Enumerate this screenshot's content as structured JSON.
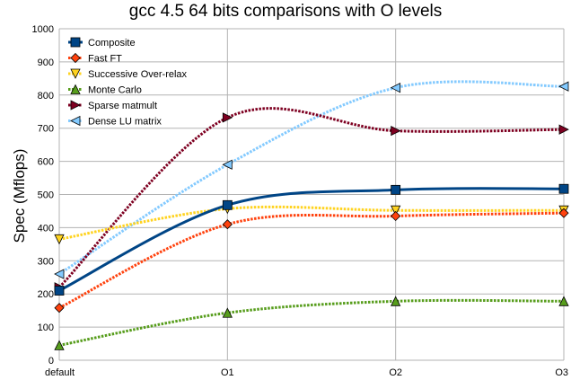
{
  "chart_data": {
    "type": "line",
    "title": "gcc 4.5 64 bits comparisons with O levels",
    "xlabel": "",
    "ylabel": "Spec (Mflops)",
    "categories": [
      "default",
      "O1",
      "O2",
      "O3"
    ],
    "ylim": [
      0,
      1000
    ],
    "yticks": [
      0,
      100,
      200,
      300,
      400,
      500,
      600,
      700,
      800,
      900,
      1000
    ],
    "grid": true,
    "legend_position": "top-left",
    "series": [
      {
        "name": "Composite",
        "values": [
          210,
          468,
          514,
          517
        ],
        "color": "#004586",
        "marker": "square",
        "dashed": false
      },
      {
        "name": "Fast FT",
        "values": [
          158,
          410,
          435,
          444
        ],
        "color": "#ff420e",
        "marker": "diamond",
        "dashed": true
      },
      {
        "name": "Successive Over-relax",
        "values": [
          365,
          457,
          452,
          452
        ],
        "color": "#ffd320",
        "marker": "triangle-down",
        "dashed": true
      },
      {
        "name": "Monte Carlo",
        "values": [
          45,
          143,
          178,
          178
        ],
        "color": "#579d1c",
        "marker": "triangle-up",
        "dashed": true
      },
      {
        "name": "Sparse matmult",
        "values": [
          220,
          732,
          692,
          696
        ],
        "color": "#7e0021",
        "marker": "triangle-right",
        "dashed": true
      },
      {
        "name": "Dense LU matrix",
        "values": [
          260,
          590,
          822,
          826
        ],
        "color": "#83caff",
        "marker": "triangle-left",
        "dashed": true
      }
    ]
  }
}
